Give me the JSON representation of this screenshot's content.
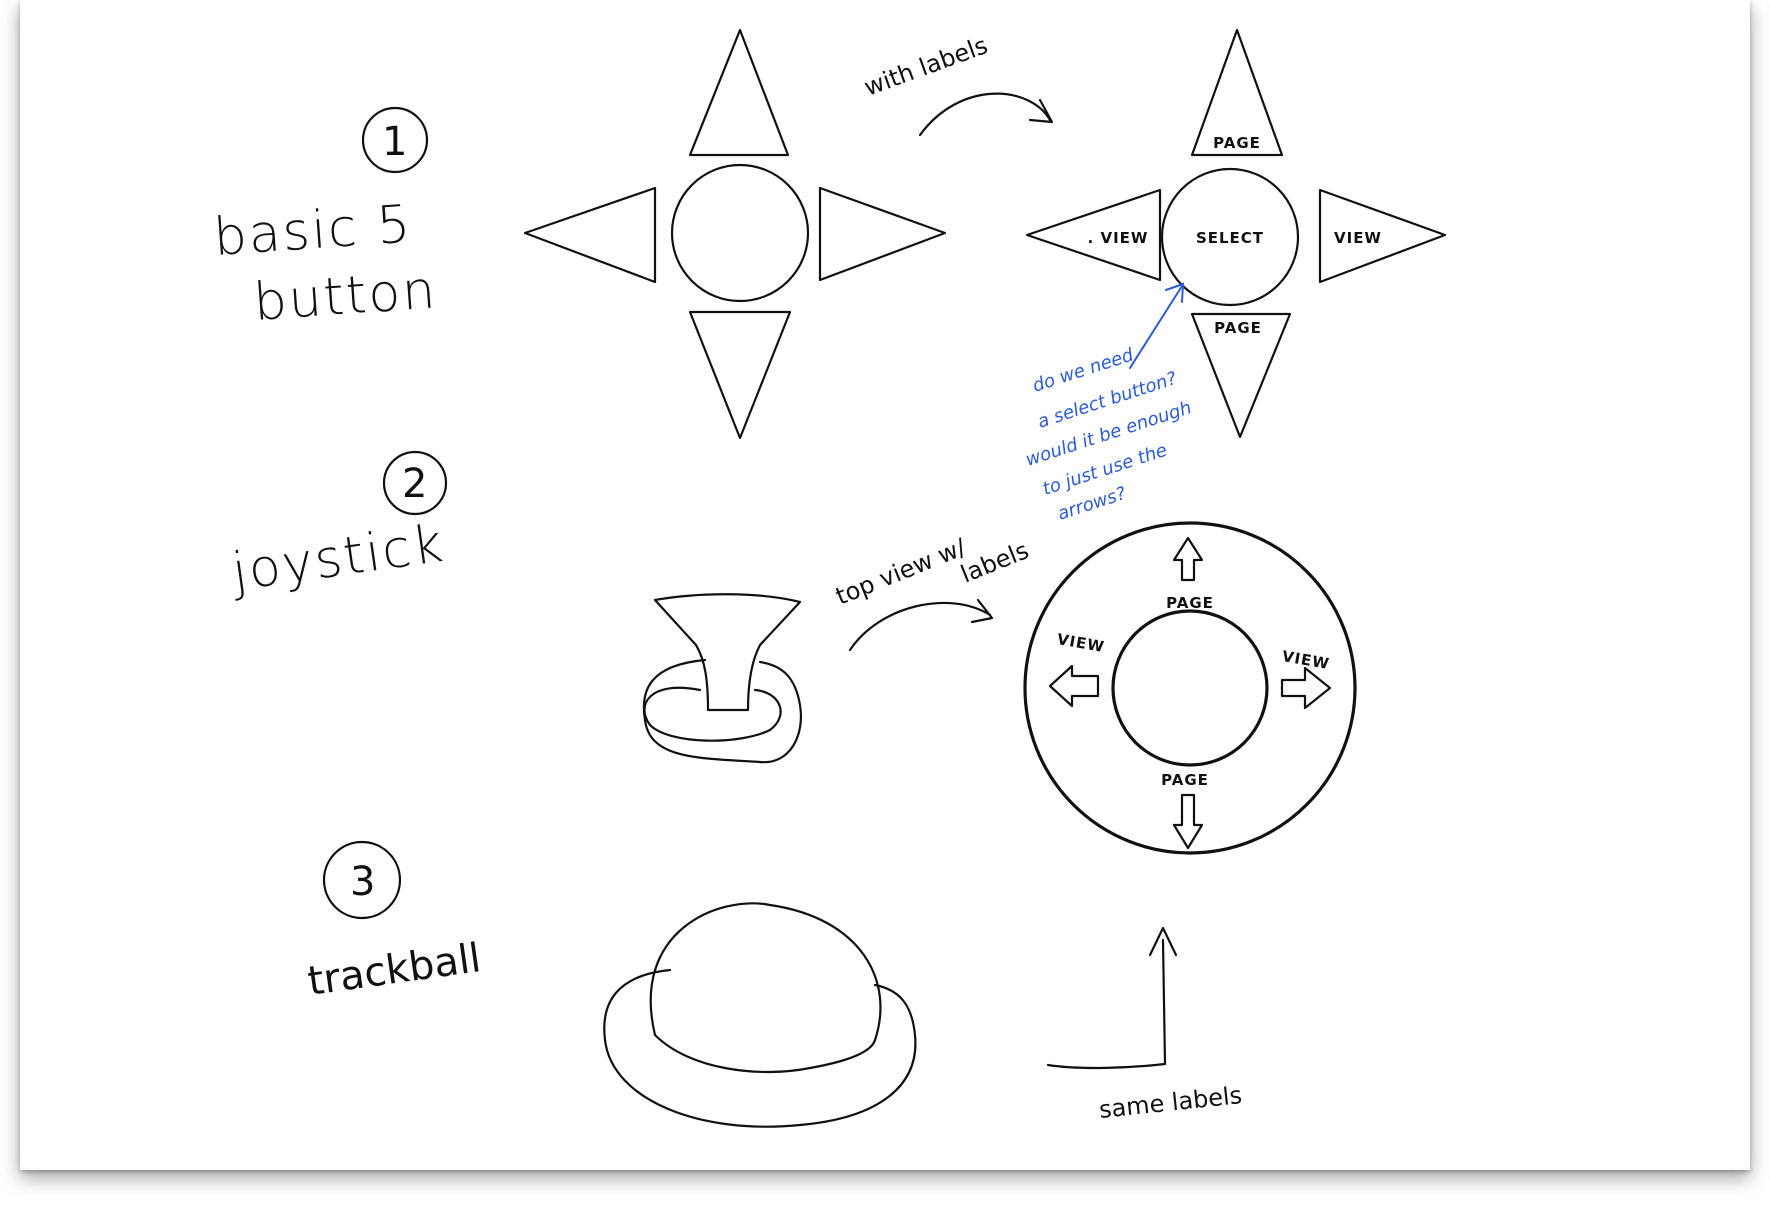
{
  "options": [
    {
      "number": "1",
      "title_line1": "basic 5",
      "title_line2": "button"
    },
    {
      "number": "2",
      "title": "joystick"
    },
    {
      "number": "3",
      "title": "trackball"
    }
  ],
  "notes": {
    "with_labels": "with labels",
    "top_view": "top view w/",
    "top_view_line2": "labels",
    "same_labels": "same labels"
  },
  "dpad_labels": {
    "up": "PAGE",
    "down": "PAGE",
    "left": ". VIEW",
    "right": "VIEW",
    "center": "SELECT"
  },
  "joystick_labels": {
    "top": "PAGE",
    "bottom": "PAGE",
    "left": "VIEW",
    "right": "VIEW"
  },
  "comment": {
    "line1": "do we need",
    "line2": "a select button?",
    "line3": "would it be enough",
    "line4": "to just use the",
    "line5": "arrows?",
    "color": "#2a5bd7"
  }
}
